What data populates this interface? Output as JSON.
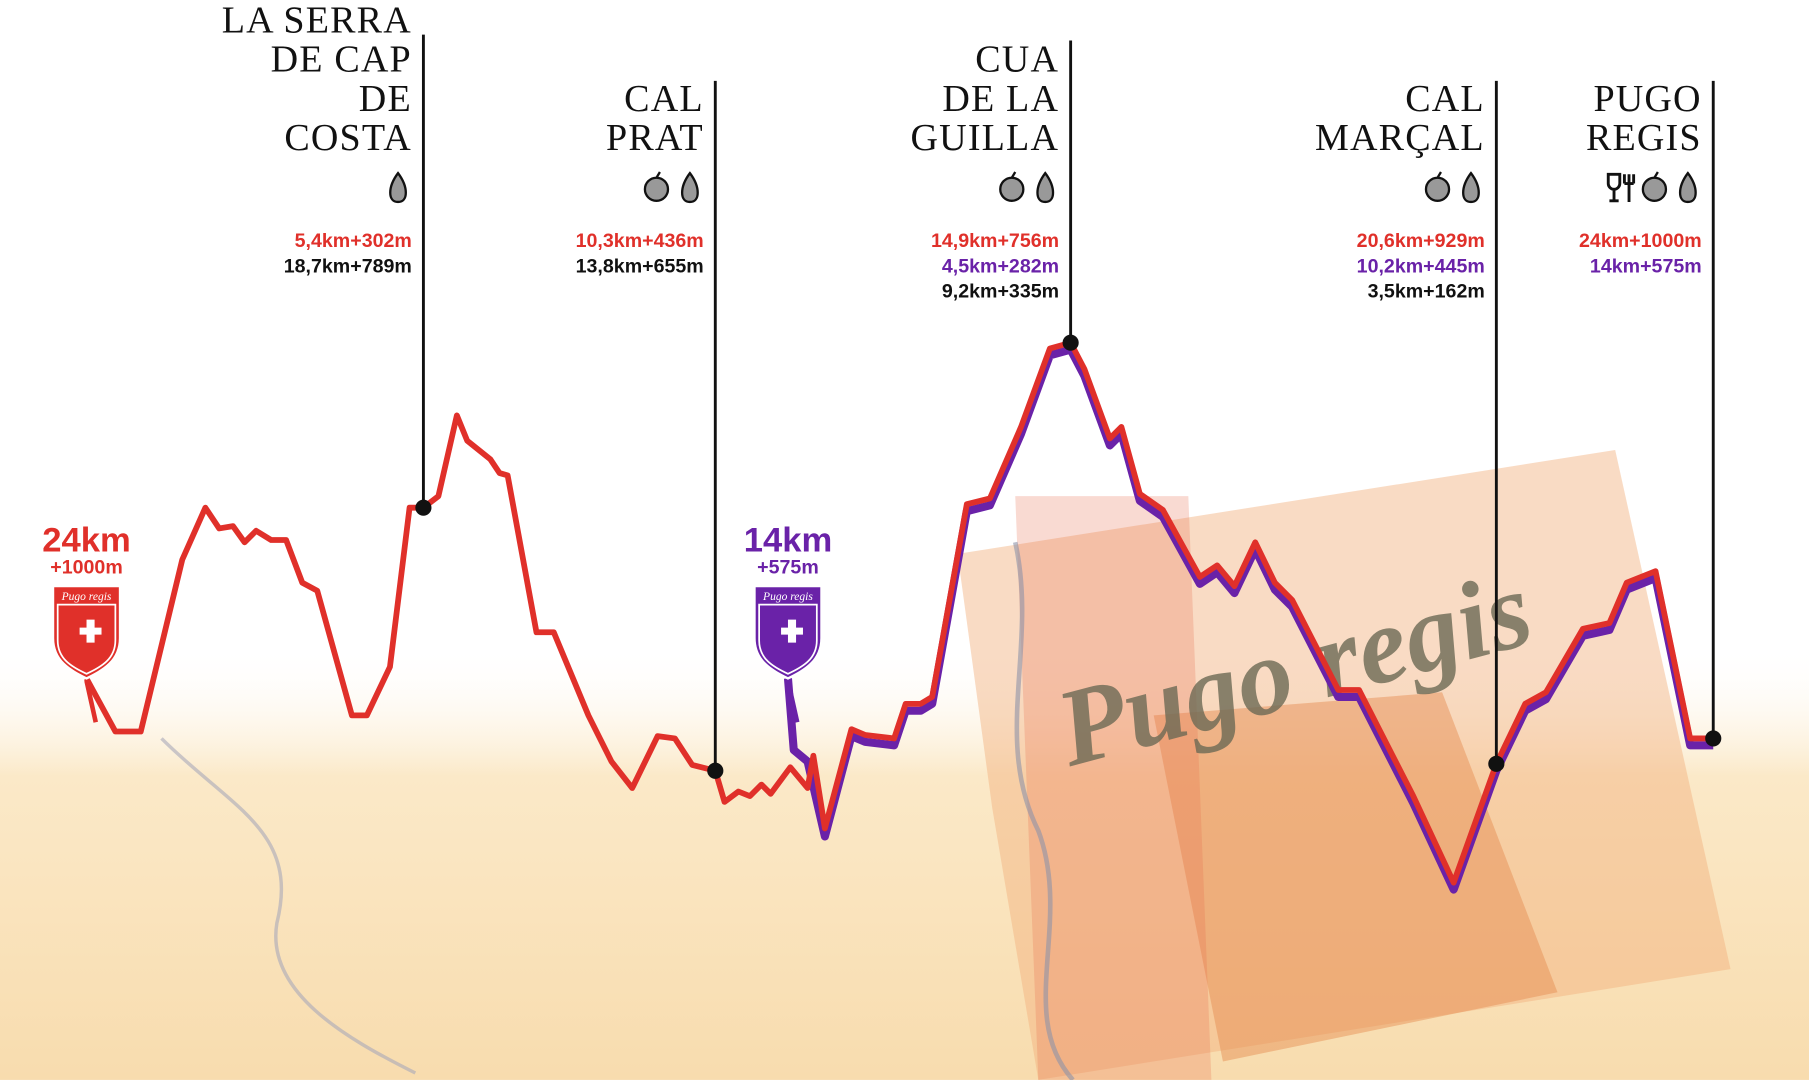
{
  "checkpoints": [
    {
      "name": [
        "LA SERRA",
        "DE CAP",
        "DE",
        "COSTA"
      ],
      "icons": [
        "water"
      ],
      "distances": [
        {
          "text": "5,4km+302m",
          "color": "#e0302a"
        },
        {
          "text": "18,7km+789m",
          "color": "#111111"
        }
      ]
    },
    {
      "name": [
        "CAL",
        "PRAT"
      ],
      "icons": [
        "apple",
        "water"
      ],
      "distances": [
        {
          "text": "10,3km+436m",
          "color": "#e0302a"
        },
        {
          "text": "13,8km+655m",
          "color": "#111111"
        }
      ]
    },
    {
      "name": [
        "CUA",
        "DE LA",
        "GUILLA"
      ],
      "icons": [
        "apple",
        "water"
      ],
      "distances": [
        {
          "text": "14,9km+756m",
          "color": "#e0302a"
        },
        {
          "text": "4,5km+282m",
          "color": "#6a22a8"
        },
        {
          "text": "9,2km+335m",
          "color": "#111111"
        }
      ]
    },
    {
      "name": [
        "CAL",
        "MARÇAL"
      ],
      "icons": [
        "apple",
        "water"
      ],
      "distances": [
        {
          "text": "20,6km+929m",
          "color": "#e0302a"
        },
        {
          "text": "10,2km+445m",
          "color": "#6a22a8"
        },
        {
          "text": "3,5km+162m",
          "color": "#111111"
        }
      ]
    },
    {
      "name": [
        "PUGO",
        "REGIS"
      ],
      "icons": [
        "food",
        "apple",
        "water"
      ],
      "distances": [
        {
          "text": "24km+1000m",
          "color": "#e0302a"
        },
        {
          "text": "14km+575m",
          "color": "#6a22a8"
        }
      ]
    }
  ],
  "starts": [
    {
      "distance": "24km",
      "climb": "+1000m",
      "badge": "Pugo regis",
      "color": "#e0302a"
    },
    {
      "distance": "14km",
      "climb": "+575m",
      "badge": "Pugo regis",
      "color": "#6a22a8"
    }
  ],
  "watermark": "Pugo regis"
}
